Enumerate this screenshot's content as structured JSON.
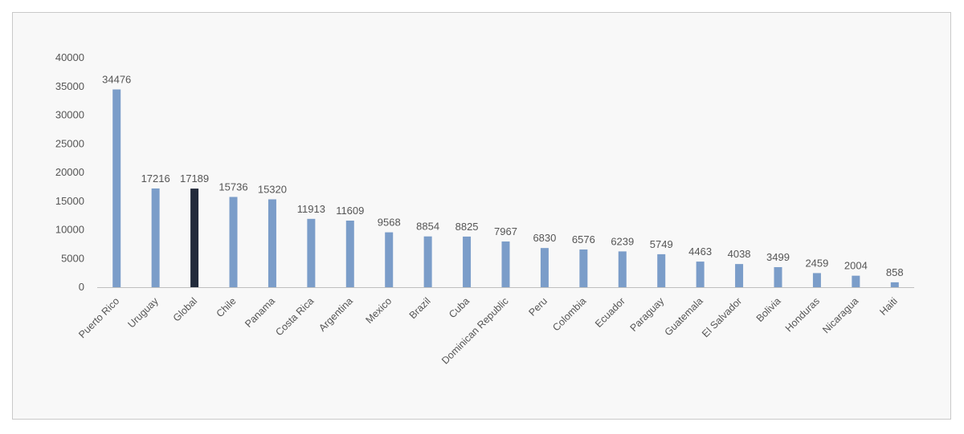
{
  "chart_data": {
    "type": "bar",
    "categories": [
      "Puerto Rico",
      "Uruguay",
      "Global",
      "Chile",
      "Panama",
      "Costa Rica",
      "Argentina",
      "Mexico",
      "Brazil",
      "Cuba",
      "Dominican Republic",
      "Peru",
      "Colombia",
      "Ecuador",
      "Paraguay",
      "Guatemala",
      "El Salvador",
      "Bolivia",
      "Honduras",
      "Nicaragua",
      "Haiti"
    ],
    "values": [
      34476,
      17216,
      17189,
      15736,
      15320,
      11913,
      11609,
      9568,
      8854,
      8825,
      7967,
      6830,
      6576,
      6239,
      5749,
      4463,
      4038,
      3499,
      2459,
      2004,
      858
    ],
    "data_labels": [
      "34476",
      "17216",
      "17189",
      "15736",
      "15320",
      "11913",
      "11609",
      "9568",
      "8854",
      "8825",
      "7967",
      "6830",
      "6576",
      "6239",
      "5749",
      "4463",
      "4038",
      "3499",
      "2459",
      "2004",
      "858"
    ],
    "yticks": [
      "0",
      "5000",
      "10000",
      "15000",
      "20000",
      "25000",
      "30000",
      "35000",
      "40000"
    ],
    "ylim": [
      0,
      40000
    ],
    "title": "",
    "xlabel": "",
    "ylabel": "",
    "grid": false,
    "legend": "none",
    "colors": {
      "bar": "#7b9dc9",
      "highlight": "#222a3b",
      "axis": "#bfbfbf",
      "text": "#555555",
      "background": "#f8f8f8"
    },
    "highlight_category": "Global"
  }
}
